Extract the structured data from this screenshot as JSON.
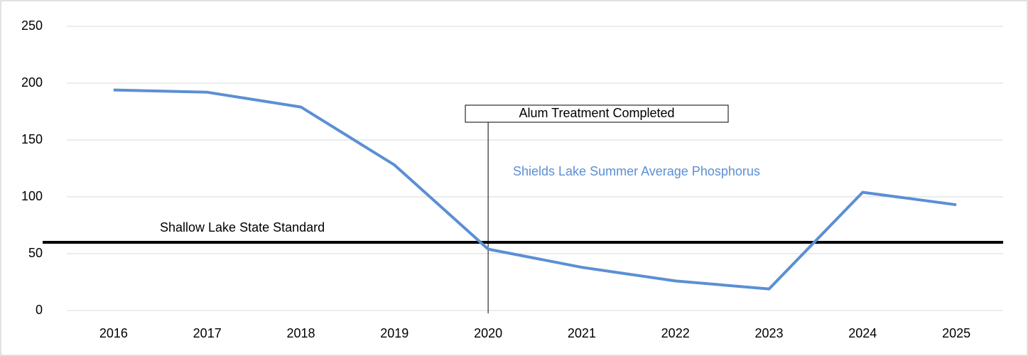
{
  "chart_data": {
    "type": "line",
    "categories": [
      "2016",
      "2017",
      "2018",
      "2019",
      "2020",
      "2021",
      "2022",
      "2023",
      "2024",
      "2025"
    ],
    "series": [
      {
        "name": "Shields Lake Summer Average Phosphorus",
        "color": "#5b8fd4",
        "values": [
          194,
          192,
          179,
          128,
          54,
          38,
          26,
          19,
          104,
          93
        ]
      }
    ],
    "standard": {
      "label": "Shallow Lake State Standard",
      "value": 60,
      "color": "#000000"
    },
    "annotation": {
      "text": "Alum Treatment Completed",
      "x": "2020"
    },
    "ylim": [
      0,
      250
    ],
    "yticks": [
      0,
      50,
      100,
      150,
      200,
      250
    ],
    "grid": true
  }
}
